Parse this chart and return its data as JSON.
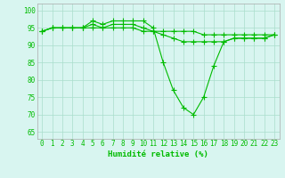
{
  "x": [
    0,
    1,
    2,
    3,
    4,
    5,
    6,
    7,
    8,
    9,
    10,
    11,
    12,
    13,
    14,
    15,
    16,
    17,
    18,
    19,
    20,
    21,
    22,
    23
  ],
  "series1": [
    94,
    95,
    95,
    95,
    95,
    97,
    96,
    97,
    97,
    97,
    97,
    95,
    85,
    77,
    72,
    70,
    75,
    84,
    91,
    92,
    92,
    92,
    92,
    93
  ],
  "series2": [
    94,
    95,
    95,
    95,
    95,
    95,
    95,
    95,
    95,
    95,
    94,
    94,
    94,
    94,
    94,
    94,
    93,
    93,
    93,
    93,
    93,
    93,
    93,
    93
  ],
  "series3": [
    94,
    95,
    95,
    95,
    95,
    96,
    95,
    96,
    96,
    96,
    95,
    94,
    93,
    92,
    91,
    91,
    91,
    91,
    91,
    92,
    92,
    92,
    92,
    93
  ],
  "line_color": "#00bb00",
  "bg_color": "#d8f5f0",
  "grid_color": "#aaddcc",
  "xlabel": "Humidité relative (%)",
  "yticks": [
    65,
    70,
    75,
    80,
    85,
    90,
    95,
    100
  ],
  "ylim": [
    63,
    102
  ],
  "xlim": [
    -0.5,
    23.5
  ],
  "tick_fontsize": 5.5,
  "xlabel_fontsize": 6.5
}
